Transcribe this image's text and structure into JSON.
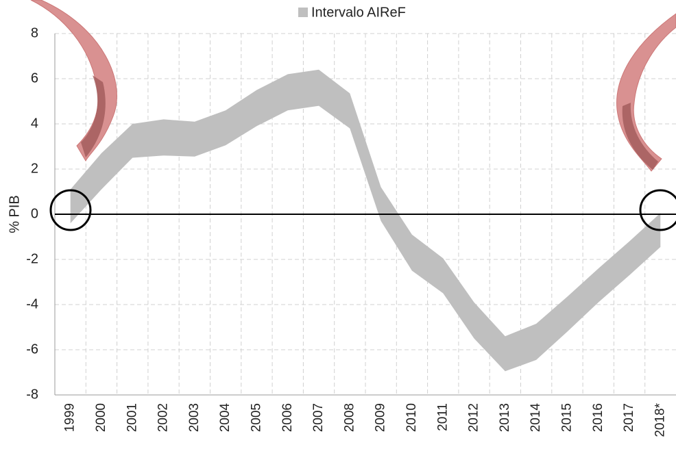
{
  "chart_data": {
    "type": "area_range",
    "y_label": "% PIB",
    "categories": [
      "1999",
      "2000",
      "2001",
      "2002",
      "2003",
      "2004",
      "2005",
      "2006",
      "2007",
      "2008",
      "2009",
      "2010",
      "2011",
      "2012",
      "2013",
      "2014",
      "2015",
      "2016",
      "2017",
      "2018*"
    ],
    "series": [
      {
        "name": "Intervalo AIReF",
        "color": "#bfbfbf",
        "high": [
          1.1,
          2.7,
          4.0,
          4.2,
          4.1,
          4.6,
          5.5,
          6.2,
          6.4,
          5.35,
          1.2,
          -0.9,
          -1.95,
          -3.9,
          -5.4,
          -4.85,
          -3.65,
          -2.4,
          -1.2,
          0.05
        ],
        "low": [
          -0.4,
          1.1,
          2.5,
          2.6,
          2.55,
          3.05,
          3.9,
          4.6,
          4.8,
          3.8,
          -0.3,
          -2.5,
          -3.5,
          -5.5,
          -6.95,
          -6.45,
          -5.2,
          -3.9,
          -2.7,
          -1.45
        ]
      }
    ],
    "ylim": [
      -8,
      8
    ],
    "yticks": [
      -8,
      -6,
      -4,
      -2,
      0,
      2,
      4,
      6,
      8
    ],
    "grid": true,
    "legend": "top"
  }
}
